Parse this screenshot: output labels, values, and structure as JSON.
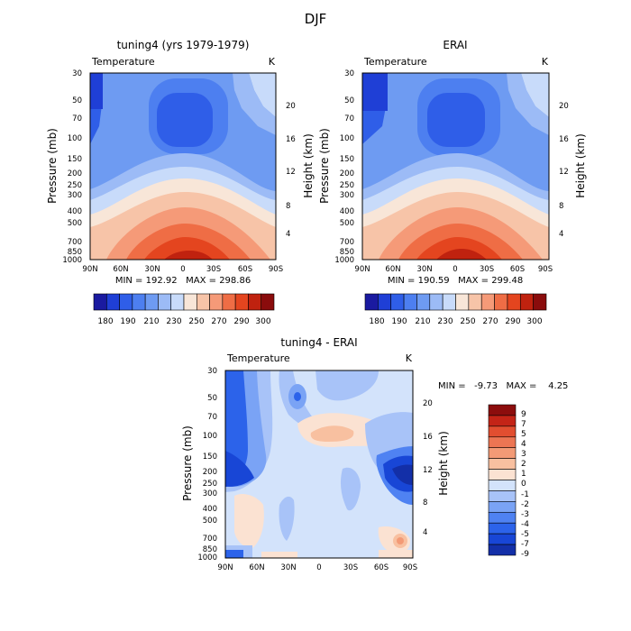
{
  "page": {
    "suptitle": "DJF"
  },
  "colors": {
    "temperature_scale": [
      "#1a1aa0",
      "#1f3fd6",
      "#2f5ee8",
      "#4d7ff0",
      "#6e9bf2",
      "#9cbbf6",
      "#c8dbfa",
      "#f8e6d8",
      "#f7c4a8",
      "#f59a78",
      "#ef6d45",
      "#e4451f",
      "#c0220f",
      "#8a0c0c"
    ],
    "difference_scale": [
      "#132fa8",
      "#1846d6",
      "#2c63ea",
      "#4f82f2",
      "#7aa3f5",
      "#a8c3f8",
      "#d3e3fb",
      "#fbe2d2",
      "#f8c0a0",
      "#f39a76",
      "#ec7553",
      "#e24e30",
      "#c42417",
      "#8c0d0d"
    ]
  },
  "chart_data": [
    {
      "type": "heatmap",
      "title": "tuning4 (yrs 1979-1979)",
      "left_label": "Temperature",
      "right_label": "K",
      "xlabel": "",
      "ylabel": "Pressure (mb)",
      "right_axis_label": "Height (km)",
      "x_ticks": [
        "90N",
        "60N",
        "30N",
        "0",
        "30S",
        "60S",
        "90S"
      ],
      "y_ticks": [
        "30",
        "50",
        "70",
        "100",
        "150",
        "200",
        "250",
        "300",
        "400",
        "500",
        "700",
        "850",
        "1000"
      ],
      "height_ticks": [
        "20",
        "16",
        "12",
        "8",
        "4"
      ],
      "min_max": "MIN = 192.92   MAX = 298.86",
      "colorbar_labels": [
        "180",
        "190",
        "210",
        "230",
        "250",
        "270",
        "290",
        "300"
      ],
      "min": 192.92,
      "max": 298.86
    },
    {
      "type": "heatmap",
      "title": "ERAI",
      "left_label": "Temperature",
      "right_label": "K",
      "xlabel": "",
      "ylabel": "Pressure (mb)",
      "right_axis_label": "Height (km)",
      "x_ticks": [
        "90N",
        "60N",
        "30N",
        "0",
        "30S",
        "60S",
        "90S"
      ],
      "y_ticks": [
        "30",
        "50",
        "70",
        "100",
        "150",
        "200",
        "250",
        "300",
        "400",
        "500",
        "700",
        "850",
        "1000"
      ],
      "height_ticks": [
        "20",
        "16",
        "12",
        "8",
        "4"
      ],
      "min_max": "MIN = 190.59   MAX = 299.48",
      "colorbar_labels": [
        "180",
        "190",
        "210",
        "230",
        "250",
        "270",
        "290",
        "300"
      ],
      "min": 190.59,
      "max": 299.48
    },
    {
      "type": "heatmap",
      "title": "tuning4 - ERAI",
      "left_label": "Temperature",
      "right_label": "K",
      "xlabel": "",
      "ylabel": "Pressure (mb)",
      "right_axis_label": "Height (km)",
      "x_ticks": [
        "90N",
        "60N",
        "30N",
        "0",
        "30S",
        "60S",
        "90S"
      ],
      "y_ticks": [
        "30",
        "50",
        "70",
        "100",
        "150",
        "200",
        "250",
        "300",
        "400",
        "500",
        "700",
        "850",
        "1000"
      ],
      "height_ticks": [
        "20",
        "16",
        "12",
        "8",
        "4"
      ],
      "min_max": "MIN =   -9.73   MAX =    4.25",
      "colorbar_labels": [
        "9",
        "7",
        "5",
        "4",
        "3",
        "2",
        "1",
        "0",
        "-1",
        "-2",
        "-3",
        "-4",
        "-5",
        "-7",
        "-9"
      ],
      "min": -9.73,
      "max": 4.25
    }
  ]
}
